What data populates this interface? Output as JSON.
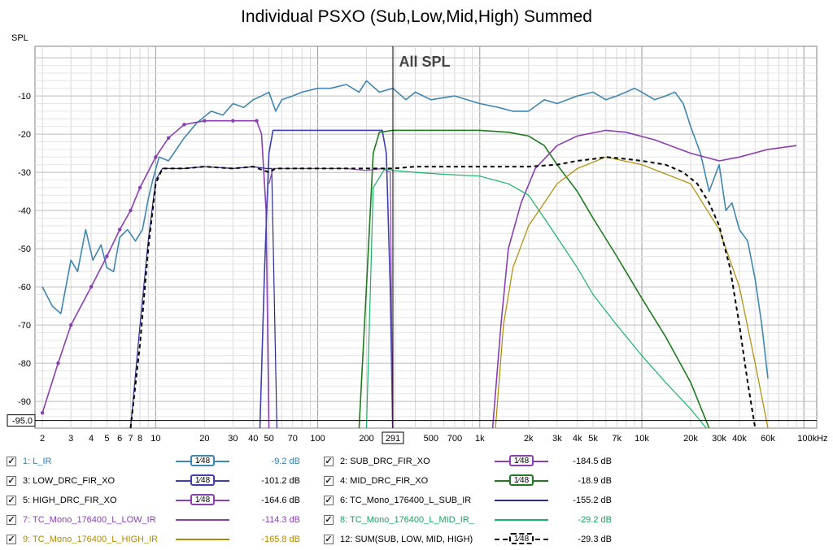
{
  "title": "Individual PSXO (Sub,Low,Mid,High) Summed",
  "chart_data": {
    "type": "line",
    "title": "Individual PSXO (Sub,Low,Mid,High) Summed",
    "subtitle": "All SPL",
    "ylabel": "SPL",
    "xlabel": "",
    "x_scale": "log",
    "xlim": [
      1.8,
      120000
    ],
    "ylim": [
      -97,
      3
    ],
    "grid": true,
    "x_ticks": [
      {
        "v": 2,
        "t": "2"
      },
      {
        "v": 3,
        "t": "3"
      },
      {
        "v": 4,
        "t": "4"
      },
      {
        "v": 5,
        "t": "5"
      },
      {
        "v": 6,
        "t": "6"
      },
      {
        "v": 7,
        "t": "7"
      },
      {
        "v": 8,
        "t": "8"
      },
      {
        "v": 10,
        "t": "10"
      },
      {
        "v": 20,
        "t": "20"
      },
      {
        "v": 30,
        "t": "30"
      },
      {
        "v": 40,
        "t": "40"
      },
      {
        "v": 50,
        "t": "50"
      },
      {
        "v": 70,
        "t": "70"
      },
      {
        "v": 100,
        "t": "100"
      },
      {
        "v": 200,
        "t": "200"
      },
      {
        "v": 291,
        "t": "291"
      },
      {
        "v": 500,
        "t": "500"
      },
      {
        "v": 700,
        "t": "700"
      },
      {
        "v": 1000,
        "t": "1k"
      },
      {
        "v": 2000,
        "t": "2k"
      },
      {
        "v": 3000,
        "t": "3k"
      },
      {
        "v": 4000,
        "t": "4k"
      },
      {
        "v": 5000,
        "t": "5k"
      },
      {
        "v": 7000,
        "t": "7k"
      },
      {
        "v": 10000,
        "t": "10k"
      },
      {
        "v": 20000,
        "t": "20k"
      },
      {
        "v": 30000,
        "t": "30k"
      },
      {
        "v": 40000,
        "t": "40k"
      },
      {
        "v": 60000,
        "t": "60k"
      },
      {
        "v": 100000,
        "t": "100kHz"
      }
    ],
    "y_ticks": [
      -10,
      -20,
      -30,
      -40,
      -50,
      -60,
      -70,
      -80,
      -90
    ],
    "cursor": {
      "x": 291,
      "y": -95.0,
      "x_label": "291",
      "y_label": "-95.0"
    },
    "series": [
      {
        "name": "1: L_IR",
        "color": "#3f87b0",
        "width": 1.6,
        "dash": "",
        "points": [
          [
            2,
            -60
          ],
          [
            2.3,
            -65
          ],
          [
            2.6,
            -67
          ],
          [
            3,
            -53
          ],
          [
            3.3,
            -56
          ],
          [
            3.7,
            -45
          ],
          [
            4.1,
            -53
          ],
          [
            4.6,
            -49
          ],
          [
            5,
            -55
          ],
          [
            5.5,
            -56
          ],
          [
            6,
            -47
          ],
          [
            6.7,
            -45
          ],
          [
            7.5,
            -48
          ],
          [
            8.3,
            -45
          ],
          [
            9,
            -37
          ],
          [
            9.6,
            -32
          ],
          [
            10.5,
            -26
          ],
          [
            12,
            -27
          ],
          [
            15,
            -21
          ],
          [
            18,
            -17
          ],
          [
            22,
            -14
          ],
          [
            26,
            -15
          ],
          [
            30,
            -12
          ],
          [
            35,
            -13
          ],
          [
            40,
            -11
          ],
          [
            45,
            -10
          ],
          [
            50,
            -9
          ],
          [
            55,
            -14
          ],
          [
            60,
            -11
          ],
          [
            70,
            -10
          ],
          [
            80,
            -9
          ],
          [
            100,
            -8
          ],
          [
            120,
            -8
          ],
          [
            150,
            -7
          ],
          [
            180,
            -9
          ],
          [
            200,
            -6
          ],
          [
            240,
            -9
          ],
          [
            291,
            -8
          ],
          [
            350,
            -11
          ],
          [
            400,
            -9
          ],
          [
            500,
            -11
          ],
          [
            700,
            -10
          ],
          [
            1000,
            -12
          ],
          [
            1300,
            -13
          ],
          [
            1600,
            -14
          ],
          [
            2000,
            -14
          ],
          [
            2500,
            -11
          ],
          [
            3000,
            -12
          ],
          [
            4000,
            -10
          ],
          [
            5000,
            -9
          ],
          [
            6000,
            -11
          ],
          [
            7000,
            -10
          ],
          [
            8000,
            -9
          ],
          [
            9000,
            -8
          ],
          [
            10000,
            -9
          ],
          [
            12000,
            -11
          ],
          [
            14000,
            -10
          ],
          [
            16000,
            -9
          ],
          [
            18000,
            -12
          ],
          [
            20000,
            -18
          ],
          [
            23000,
            -25
          ],
          [
            26000,
            -35
          ],
          [
            30000,
            -28
          ],
          [
            33000,
            -40
          ],
          [
            36000,
            -38
          ],
          [
            40000,
            -45
          ],
          [
            45000,
            -48
          ],
          [
            50000,
            -58
          ],
          [
            55000,
            -70
          ],
          [
            60000,
            -84
          ]
        ]
      },
      {
        "name": "2: SUB_DRC_FIR_XO",
        "color": "#8a3fb0",
        "width": 1.6,
        "dash": "",
        "points": [
          [
            2,
            -93
          ],
          [
            2.5,
            -80
          ],
          [
            3,
            -70
          ],
          [
            4,
            -60
          ],
          [
            5,
            -52
          ],
          [
            6,
            -45
          ],
          [
            7,
            -40
          ],
          [
            8,
            -34
          ],
          [
            10,
            -26
          ],
          [
            12,
            -21
          ],
          [
            15,
            -17.5
          ],
          [
            20,
            -16.5
          ],
          [
            30,
            -16.5
          ],
          [
            42,
            -16.5
          ],
          [
            45,
            -20
          ],
          [
            48,
            -40
          ],
          [
            50,
            -97
          ]
        ]
      },
      {
        "name": "3: LOW_DRC_FIR_XO",
        "color": "#3f3fb0",
        "width": 1.6,
        "dash": "",
        "points": [
          [
            44,
            -97
          ],
          [
            47,
            -55
          ],
          [
            50,
            -25
          ],
          [
            53,
            -19
          ],
          [
            60,
            -19
          ],
          [
            100,
            -19
          ],
          [
            200,
            -19
          ],
          [
            250,
            -19
          ],
          [
            265,
            -25
          ],
          [
            280,
            -60
          ],
          [
            290,
            -97
          ]
        ]
      },
      {
        "name": "4: MID_DRC_FIR_XO",
        "color": "#1f7a1f",
        "width": 1.6,
        "dash": "",
        "points": [
          [
            180,
            -97
          ],
          [
            200,
            -60
          ],
          [
            220,
            -25
          ],
          [
            240,
            -19.5
          ],
          [
            291,
            -19
          ],
          [
            500,
            -19
          ],
          [
            1000,
            -19
          ],
          [
            1500,
            -19.5
          ],
          [
            2000,
            -20.5
          ],
          [
            2500,
            -23
          ],
          [
            3000,
            -28
          ],
          [
            4000,
            -35
          ],
          [
            5000,
            -42
          ],
          [
            7000,
            -52
          ],
          [
            10000,
            -63
          ],
          [
            14000,
            -73
          ],
          [
            20000,
            -85
          ],
          [
            26000,
            -97
          ]
        ]
      },
      {
        "name": "5: HIGH_DRC_FIR_XO",
        "color": "#8a3fb0",
        "width": 1.6,
        "dash": "",
        "points": [
          [
            1200,
            -97
          ],
          [
            1350,
            -70
          ],
          [
            1500,
            -50
          ],
          [
            1800,
            -38
          ],
          [
            2200,
            -29
          ],
          [
            3000,
            -23
          ],
          [
            4000,
            -20.5
          ],
          [
            6000,
            -19
          ],
          [
            8000,
            -19.5
          ],
          [
            12000,
            -21.5
          ],
          [
            20000,
            -25
          ],
          [
            30000,
            -27
          ],
          [
            40000,
            -26
          ],
          [
            60000,
            -24
          ],
          [
            90000,
            -23
          ]
        ]
      },
      {
        "name": "6: TC_Mono_176400_L_SUB_IR",
        "color": "#2a2a90",
        "width": 1.2,
        "dash": "",
        "points": [
          [
            7,
            -97
          ],
          [
            8,
            -70
          ],
          [
            9,
            -48
          ],
          [
            10,
            -32
          ],
          [
            11,
            -29
          ],
          [
            15,
            -29
          ],
          [
            20,
            -28.5
          ],
          [
            30,
            -29
          ],
          [
            40,
            -28.5
          ],
          [
            48,
            -29
          ],
          [
            52,
            -29
          ],
          [
            56,
            -97
          ]
        ]
      },
      {
        "name": "7: TC_Mono_176400_L_LOW_IR",
        "color": "#8a3fb0",
        "width": 1.2,
        "dash": "",
        "points": [
          [
            50,
            -33
          ],
          [
            53,
            -29
          ],
          [
            70,
            -29
          ],
          [
            100,
            -29
          ],
          [
            150,
            -29
          ],
          [
            200,
            -29.5
          ],
          [
            250,
            -29
          ],
          [
            280,
            -30
          ],
          [
            290,
            -97
          ]
        ]
      },
      {
        "name": "8: TC_Mono_176400_L_MID_IR_",
        "color": "#18b36a",
        "width": 1.2,
        "dash": "",
        "points": [
          [
            200,
            -97
          ],
          [
            220,
            -34
          ],
          [
            260,
            -29
          ],
          [
            291,
            -29.5
          ],
          [
            400,
            -30
          ],
          [
            600,
            -30.5
          ],
          [
            1000,
            -31
          ],
          [
            1500,
            -33
          ],
          [
            2000,
            -36
          ],
          [
            2500,
            -42
          ],
          [
            3000,
            -47
          ],
          [
            4000,
            -55
          ],
          [
            5000,
            -62
          ],
          [
            7000,
            -70
          ],
          [
            10000,
            -78
          ],
          [
            14000,
            -85
          ],
          [
            20000,
            -92
          ],
          [
            25000,
            -97
          ]
        ]
      },
      {
        "name": "9: TC_Mono_176400_L_HIGH_IR",
        "color": "#b08a00",
        "width": 1.2,
        "dash": "",
        "points": [
          [
            1250,
            -97
          ],
          [
            1400,
            -70
          ],
          [
            1600,
            -55
          ],
          [
            2000,
            -44
          ],
          [
            2500,
            -38
          ],
          [
            3000,
            -33
          ],
          [
            4000,
            -29
          ],
          [
            6000,
            -26
          ],
          [
            10000,
            -28
          ],
          [
            20000,
            -33
          ],
          [
            30000,
            -45
          ],
          [
            40000,
            -60
          ],
          [
            50000,
            -80
          ],
          [
            60000,
            -97
          ]
        ]
      },
      {
        "name": "12: SUM(SUB, LOW, MID, HIGH)",
        "color": "#000000",
        "width": 2,
        "dash": "5,4",
        "points": [
          [
            7,
            -97
          ],
          [
            8,
            -75
          ],
          [
            9,
            -50
          ],
          [
            10,
            -33
          ],
          [
            11,
            -29
          ],
          [
            15,
            -29
          ],
          [
            20,
            -28.5
          ],
          [
            30,
            -29
          ],
          [
            40,
            -28.5
          ],
          [
            50,
            -30
          ],
          [
            55,
            -29
          ],
          [
            70,
            -29
          ],
          [
            100,
            -29
          ],
          [
            200,
            -29
          ],
          [
            291,
            -29
          ],
          [
            400,
            -28.5
          ],
          [
            600,
            -28.5
          ],
          [
            1000,
            -28.5
          ],
          [
            2000,
            -28.5
          ],
          [
            3000,
            -28
          ],
          [
            4000,
            -27
          ],
          [
            5000,
            -26.5
          ],
          [
            6000,
            -26
          ],
          [
            8000,
            -26.5
          ],
          [
            10000,
            -27
          ],
          [
            14000,
            -28
          ],
          [
            18000,
            -30
          ],
          [
            22000,
            -33
          ],
          [
            26000,
            -38
          ],
          [
            30000,
            -44
          ],
          [
            35000,
            -55
          ],
          [
            40000,
            -70
          ],
          [
            45000,
            -85
          ],
          [
            50000,
            -97
          ]
        ]
      }
    ]
  },
  "legend": {
    "items": [
      {
        "id": "1",
        "label": "1: L_IR",
        "text_color": "#2f7fb0",
        "color": "#3f87b0",
        "value": "-9.2 dB",
        "swatch": "box",
        "swatch_text": "1⁄48",
        "checked": "✓"
      },
      {
        "id": "2",
        "label": "2: SUB_DRC_FIR_XO",
        "text_color": "#000000",
        "color": "#8a3fb0",
        "value": "-184.5 dB",
        "swatch": "box",
        "swatch_text": "1⁄48",
        "checked": "✓"
      },
      {
        "id": "3",
        "label": "3: LOW_DRC_FIR_XO",
        "text_color": "#000000",
        "color": "#3f3fb0",
        "value": "-101.2 dB",
        "swatch": "box",
        "swatch_text": "1⁄48",
        "checked": "✓"
      },
      {
        "id": "4",
        "label": "4: MID_DRC_FIR_XO",
        "text_color": "#000000",
        "color": "#1f7a1f",
        "value": "-18.9 dB",
        "swatch": "box",
        "swatch_text": "1⁄48",
        "checked": "✓"
      },
      {
        "id": "5",
        "label": "5: HIGH_DRC_FIR_XO",
        "text_color": "#000000",
        "color": "#8a3fb0",
        "value": "-164.6 dB",
        "swatch": "box",
        "swatch_text": "1⁄48",
        "checked": "✓"
      },
      {
        "id": "6",
        "label": "6: TC_Mono_176400_L_SUB_IR",
        "text_color": "#000000",
        "color": "#2a2a90",
        "value": "-155.2 dB",
        "swatch": "line",
        "swatch_text": "",
        "checked": "✓"
      },
      {
        "id": "7",
        "label": "7: TC_Mono_176400_L_LOW_IR",
        "text_color": "#8a3fb0",
        "color": "#8a3fb0",
        "value": "-114.3 dB",
        "swatch": "line",
        "swatch_text": "",
        "checked": "✓"
      },
      {
        "id": "8",
        "label": "8: TC_Mono_176400_L_MID_IR_",
        "text_color": "#18a060",
        "color": "#18b36a",
        "value": "-29.2 dB",
        "swatch": "line",
        "swatch_text": "",
        "checked": "✓"
      },
      {
        "id": "9",
        "label": "9: TC_Mono_176400_L_HIGH_IR",
        "text_color": "#b08a00",
        "color": "#b08a00",
        "value": "-165.8 dB",
        "swatch": "line",
        "swatch_text": "",
        "checked": "✓"
      },
      {
        "id": "12",
        "label": "12: SUM(SUB, LOW, MID, HIGH)",
        "text_color": "#000000",
        "color": "#000000",
        "value": "-29.3 dB",
        "swatch": "dashbox",
        "swatch_text": "1⁄48",
        "checked": "✓"
      }
    ]
  }
}
